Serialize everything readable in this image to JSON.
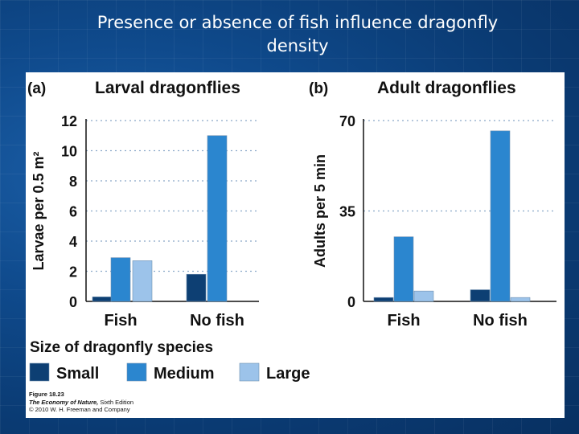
{
  "slide": {
    "title_line1": "Presence or absence of fish influence dragonfly",
    "title_line2": "density"
  },
  "legend": {
    "title": "Size of dragonfly species",
    "items": [
      {
        "label": "Small",
        "color": "#0d3f73"
      },
      {
        "label": "Medium",
        "color": "#2b86cf"
      },
      {
        "label": "Large",
        "color": "#9cc3ea"
      }
    ]
  },
  "caption": {
    "figure": "Figure 18.23",
    "book_title": "The Economy of Nature,",
    "book_edition": " Sixth Edition",
    "copyright": "© 2010 W. H. Freeman and Company"
  },
  "chart_data": [
    {
      "type": "bar",
      "panel": "(a)",
      "title": "Larval dragonflies",
      "ylabel": "Larvae per 0.5 m²",
      "categories": [
        "Fish",
        "No fish"
      ],
      "ylim": [
        0,
        12
      ],
      "yticks": [
        "0",
        "2",
        "4",
        "6",
        "8",
        "10",
        "12"
      ],
      "ytick_values": [
        0,
        2,
        4,
        6,
        8,
        10,
        12
      ],
      "grid": true,
      "series": [
        {
          "name": "Small",
          "color": "#0d3f73",
          "values": [
            0.3,
            1.8
          ]
        },
        {
          "name": "Medium",
          "color": "#2b86cf",
          "values": [
            2.9,
            11.0
          ]
        },
        {
          "name": "Large",
          "color": "#9cc3ea",
          "values": [
            2.7,
            0
          ]
        }
      ]
    },
    {
      "type": "bar",
      "panel": "(b)",
      "title": "Adult dragonflies",
      "ylabel": "Adults per 5 min",
      "categories": [
        "Fish",
        "No fish"
      ],
      "ylim": [
        0,
        70
      ],
      "yticks": [
        "0",
        "35",
        "70"
      ],
      "ytick_values": [
        0,
        35,
        70
      ],
      "grid": true,
      "series": [
        {
          "name": "Small",
          "color": "#0d3f73",
          "values": [
            1.5,
            4.5
          ]
        },
        {
          "name": "Medium",
          "color": "#2b86cf",
          "values": [
            25,
            66
          ]
        },
        {
          "name": "Large",
          "color": "#9cc3ea",
          "values": [
            4,
            1.5
          ]
        }
      ]
    }
  ]
}
